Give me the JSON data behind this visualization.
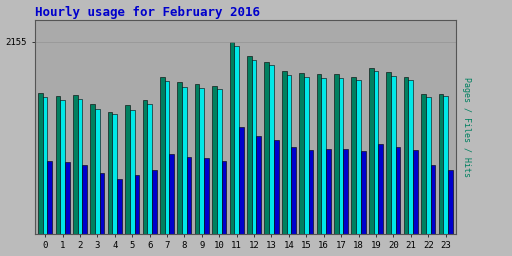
{
  "title": "Hourly usage for February 2016",
  "title_color": "#0000cc",
  "title_fontsize": 9,
  "hours": [
    0,
    1,
    2,
    3,
    4,
    5,
    6,
    7,
    8,
    9,
    10,
    11,
    12,
    13,
    14,
    15,
    16,
    17,
    18,
    19,
    20,
    21,
    22,
    23
  ],
  "pages": [
    1580,
    1550,
    1560,
    1450,
    1370,
    1440,
    1500,
    1760,
    1700,
    1680,
    1660,
    2145,
    1990,
    1930,
    1820,
    1800,
    1790,
    1790,
    1760,
    1860,
    1810,
    1760,
    1570,
    1570
  ],
  "files": [
    1530,
    1500,
    1510,
    1400,
    1340,
    1390,
    1450,
    1710,
    1650,
    1640,
    1620,
    2100,
    1950,
    1890,
    1780,
    1760,
    1750,
    1750,
    1720,
    1820,
    1770,
    1720,
    1530,
    1540
  ],
  "hits": [
    820,
    800,
    770,
    680,
    620,
    660,
    720,
    900,
    860,
    850,
    820,
    1200,
    1100,
    1050,
    970,
    940,
    950,
    950,
    930,
    1010,
    970,
    940,
    770,
    710
  ],
  "pages_color": "#008060",
  "files_color": "#00e8e8",
  "hits_color": "#0000cc",
  "bg_color": "#bbbbbb",
  "plot_bg_color": "#aaaaaa",
  "ylabel": "Pages / Files / Hits",
  "ylabel_color": "#008060",
  "ytick_label": "2155",
  "bar_width": 0.27,
  "ylim_max": 2400,
  "ytick_val": 2155
}
